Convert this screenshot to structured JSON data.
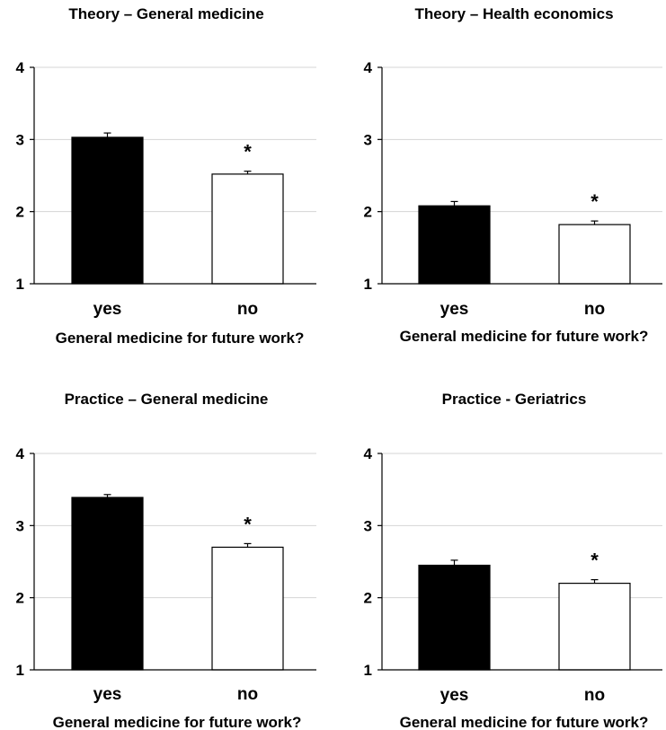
{
  "chart_data": [
    {
      "type": "bar",
      "title": "Theory – General medicine",
      "xlabel": "General medicine for future work?",
      "ylabel": "",
      "categories": [
        "yes",
        "no"
      ],
      "values": [
        3.03,
        2.52
      ],
      "errors": [
        0.06,
        0.04
      ],
      "significance": [
        "",
        "*"
      ],
      "ylim": [
        1,
        4
      ],
      "yticks": [
        "1",
        "2",
        "3",
        "4"
      ],
      "grid": true,
      "bar_colors": [
        "#000000",
        "#ffffff"
      ]
    },
    {
      "type": "bar",
      "title": "Theory – Health economics",
      "xlabel": "General medicine for future work?",
      "ylabel": "",
      "categories": [
        "yes",
        "no"
      ],
      "values": [
        2.08,
        1.82
      ],
      "errors": [
        0.06,
        0.05
      ],
      "significance": [
        "",
        "*"
      ],
      "ylim": [
        1,
        4
      ],
      "yticks": [
        "1",
        "2",
        "3",
        "4"
      ],
      "grid": true,
      "bar_colors": [
        "#000000",
        "#ffffff"
      ]
    },
    {
      "type": "bar",
      "title": "Practice – General medicine",
      "xlabel": "General medicine for future work?",
      "ylabel": "",
      "categories": [
        "yes",
        "no"
      ],
      "values": [
        3.39,
        2.7
      ],
      "errors": [
        0.04,
        0.05
      ],
      "significance": [
        "",
        "*"
      ],
      "ylim": [
        1,
        4
      ],
      "yticks": [
        "1",
        "2",
        "3",
        "4"
      ],
      "grid": true,
      "bar_colors": [
        "#000000",
        "#ffffff"
      ]
    },
    {
      "type": "bar",
      "title": "Practice - Geriatrics",
      "xlabel": "General medicine for future work?",
      "ylabel": "",
      "categories": [
        "yes",
        "no"
      ],
      "values": [
        2.45,
        2.2
      ],
      "errors": [
        0.07,
        0.05
      ],
      "significance": [
        "",
        "*"
      ],
      "ylim": [
        1,
        4
      ],
      "yticks": [
        "1",
        "2",
        "3",
        "4"
      ],
      "grid": true,
      "bar_colors": [
        "#000000",
        "#ffffff"
      ]
    }
  ]
}
